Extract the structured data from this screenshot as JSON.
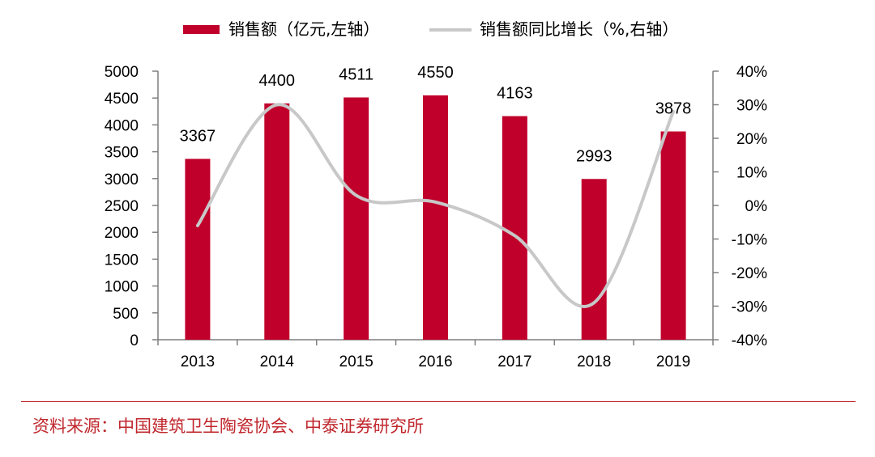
{
  "chart_data": {
    "type": "bar+line",
    "categories": [
      "2013",
      "2014",
      "2015",
      "2016",
      "2017",
      "2018",
      "2019"
    ],
    "series": [
      {
        "name": "销售额（亿元,左轴）",
        "type": "bar",
        "axis": "left",
        "values": [
          3367,
          4400,
          4511,
          4550,
          4163,
          2993,
          3878
        ],
        "data_labels": [
          "3367",
          "4400",
          "4511",
          "4550",
          "4163",
          "2993",
          "3878"
        ]
      },
      {
        "name": "销售额同比增长（%,右轴）",
        "type": "line",
        "axis": "right",
        "values": [
          -6,
          30,
          3,
          1,
          -9,
          -29,
          28
        ]
      }
    ],
    "left_axis": {
      "range": [
        0,
        5000
      ],
      "ticks": [
        0,
        500,
        1000,
        1500,
        2000,
        2500,
        3000,
        3500,
        4000,
        4500,
        5000
      ],
      "tick_labels": [
        "0",
        "500",
        "1000",
        "1500",
        "2000",
        "2500",
        "3000",
        "3500",
        "4000",
        "4500",
        "5000"
      ]
    },
    "right_axis": {
      "range": [
        -40,
        40
      ],
      "ticks": [
        -40,
        -30,
        -20,
        -10,
        0,
        10,
        20,
        30,
        40
      ],
      "tick_labels": [
        "-40%",
        "-30%",
        "-20%",
        "-10%",
        "0%",
        "10%",
        "20%",
        "30%",
        "40%"
      ]
    },
    "legend_position": "top-center",
    "grid": false
  },
  "colors": {
    "bar": "#c0002b",
    "line": "#c8c8c8",
    "axis": "#7f7f7f",
    "source_text": "#c0272d",
    "rule": "#c0272d"
  },
  "source": "资料来源：中国建筑卫生陶瓷协会、中泰证券研究所"
}
